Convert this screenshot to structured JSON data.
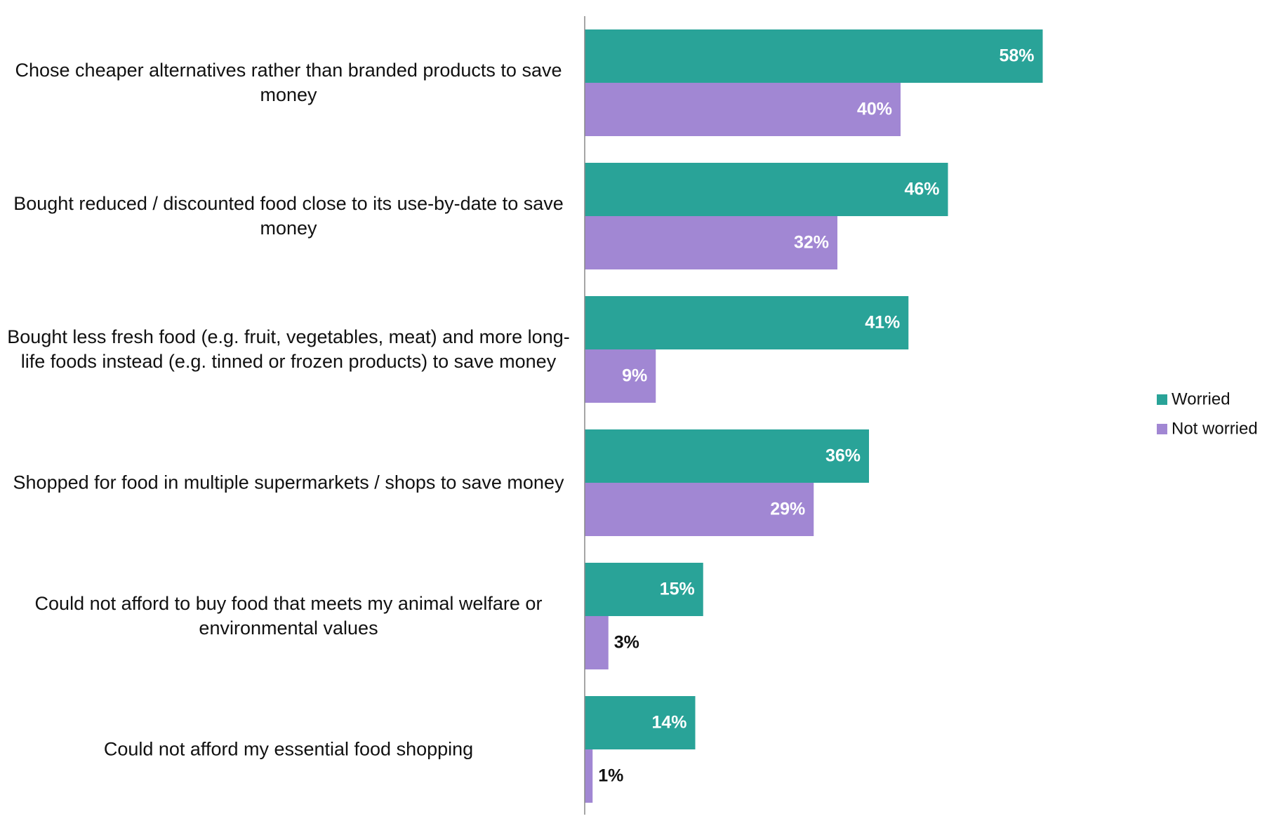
{
  "chart_data": {
    "type": "bar",
    "orientation": "horizontal",
    "categories": [
      "Chose cheaper alternatives rather than branded products to save money",
      "Bought reduced / discounted food close to its use-by-date to save money",
      "Bought less fresh food (e.g. fruit, vegetables, meat) and more long-life foods instead (e.g. tinned or frozen products) to save money",
      "Shopped for food in multiple supermarkets / shops to save money",
      "Could not afford to buy food that meets my animal welfare or environmental values",
      "Could not afford my essential food shopping"
    ],
    "series": [
      {
        "name": "Worried",
        "color": "#29a398",
        "values": [
          58,
          46,
          41,
          36,
          15,
          14
        ],
        "value_labels": [
          "58%",
          "46%",
          "41%",
          "36%",
          "15%",
          "14%"
        ]
      },
      {
        "name": "Not worried",
        "color": "#a187d3",
        "values": [
          40,
          32,
          9,
          29,
          3,
          1
        ],
        "value_labels": [
          "40%",
          "32%",
          "9%",
          "29%",
          "3%",
          "1%"
        ]
      }
    ],
    "legend": "right"
  }
}
